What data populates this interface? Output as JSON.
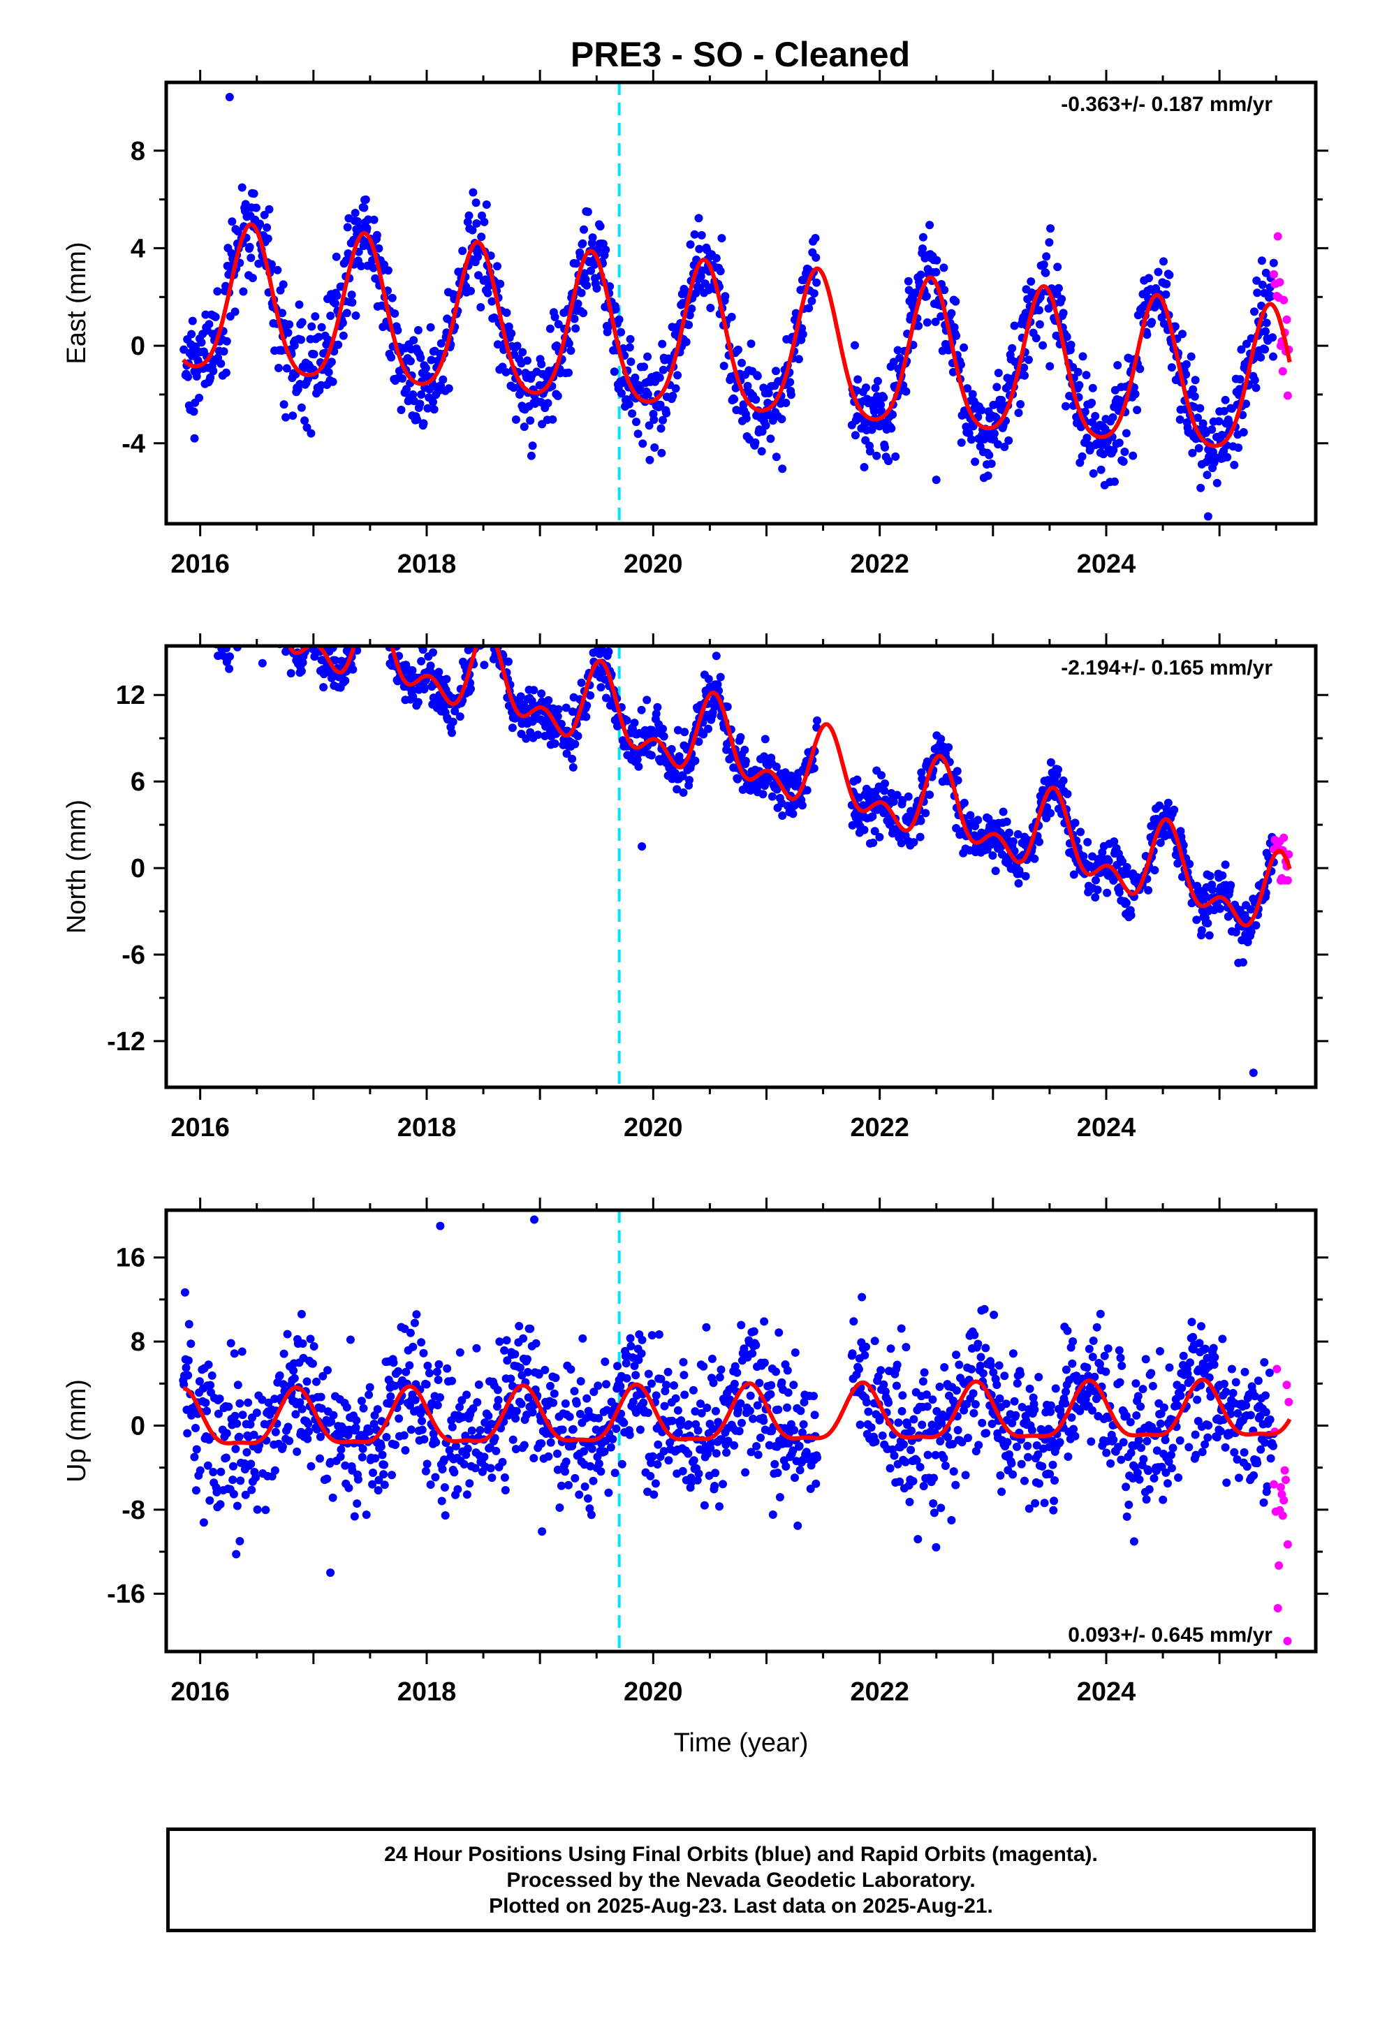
{
  "title": "PRE3  - SO - Cleaned",
  "colors": {
    "final_orbits": "#0000ff",
    "rapid_orbits": "#ff00ff",
    "model_fit": "#ff0000",
    "event_line": "#00e5ff",
    "frame": "#000000"
  },
  "chart_data": [
    {
      "type": "scatter",
      "panel": "east",
      "ylabel": "East (mm)",
      "xlabel": "",
      "xlim": [
        2015.7,
        2025.85
      ],
      "ylim": [
        -7.3,
        10.8
      ],
      "xticks": [
        2016,
        2018,
        2020,
        2022,
        2024
      ],
      "xtick_labels": [
        "2016",
        "2018",
        "2020",
        "2022",
        "2024"
      ],
      "yticks": [
        8,
        4,
        0,
        -4
      ],
      "ytick_labels": [
        "8",
        "4",
        "0",
        "-4"
      ],
      "rate_label": "-0.363+/- 0.187 mm/yr",
      "rate_position": "top-right",
      "event_line_x": 2019.7,
      "series": [
        {
          "role": "Final Orbits (blue)",
          "style": "points",
          "model": {
            "start": 2015.85,
            "end": 2025.48,
            "offset": 0.3,
            "rate": -0.363,
            "annual_amp": 3.0,
            "annual_peak": 0.45,
            "semi_amp": 0.5,
            "semi_peak": 0.45,
            "noise": 1.0,
            "gaps": [
              [
                2021.45,
                2021.75
              ]
            ],
            "outliers": [
              [
                2016.26,
                10.2
              ],
              [
                2015.95,
                -3.8
              ],
              [
                2022.5,
                -5.5
              ],
              [
                2024.9,
                -7.0
              ]
            ]
          }
        },
        {
          "role": "Rapid Orbits (magenta)",
          "style": "points",
          "model": {
            "start": 2025.48,
            "end": 2025.62,
            "offset": 0.3,
            "rate": -0.363,
            "annual_amp": 3.0,
            "annual_peak": 0.45,
            "semi_amp": 0.5,
            "semi_peak": 0.45,
            "noise": 1.2,
            "gaps": [],
            "outliers": []
          }
        },
        {
          "role": "model fit",
          "style": "line",
          "model": {
            "start": 2015.85,
            "end": 2025.62,
            "offset": 0.3,
            "rate": -0.363,
            "annual_amp": 3.0,
            "annual_peak": 0.45,
            "semi_amp": 0.5,
            "semi_peak": 0.45,
            "noise": 0,
            "gaps": [],
            "outliers": []
          }
        }
      ]
    },
    {
      "type": "scatter",
      "panel": "north",
      "ylabel": "North (mm)",
      "xlabel": "",
      "xlim": [
        2015.7,
        2025.85
      ],
      "ylim": [
        -15.2,
        15.4
      ],
      "xticks": [
        2016,
        2018,
        2020,
        2022,
        2024
      ],
      "xtick_labels": [
        "2016",
        "2018",
        "2020",
        "2022",
        "2024"
      ],
      "yticks": [
        12,
        6,
        0,
        -6,
        -12
      ],
      "ytick_labels": [
        "12",
        "6",
        "0",
        "-6",
        "-12"
      ],
      "rate_label": "-2.194+/- 0.165 mm/yr",
      "rate_position": "top-right",
      "event_line_x": 2019.7,
      "series": [
        {
          "role": "Final Orbits (blue)",
          "style": "points",
          "model": {
            "start": 2015.85,
            "end": 2025.48,
            "offset": 10.3,
            "rate": -2.194,
            "annual_amp": 2.2,
            "annual_peak": 0.55,
            "semi_amp": 1.5,
            "semi_peak": 0.53,
            "noise": 0.9,
            "gaps": [
              [
                2021.45,
                2021.75
              ]
            ],
            "outliers": [
              [
                2016.55,
                14.2
              ],
              [
                2019.9,
                1.5
              ],
              [
                2025.3,
                -14.2
              ]
            ]
          }
        },
        {
          "role": "Rapid Orbits (magenta)",
          "style": "points",
          "model": {
            "start": 2025.48,
            "end": 2025.62,
            "offset": 10.3,
            "rate": -2.194,
            "annual_amp": 2.2,
            "annual_peak": 0.55,
            "semi_amp": 1.5,
            "semi_peak": 0.53,
            "noise": 1.0,
            "gaps": [],
            "outliers": []
          }
        },
        {
          "role": "model fit",
          "style": "line",
          "model": {
            "start": 2015.85,
            "end": 2025.62,
            "offset": 10.3,
            "rate": -2.194,
            "annual_amp": 2.2,
            "annual_peak": 0.55,
            "semi_amp": 1.5,
            "semi_peak": 0.53,
            "noise": 0,
            "gaps": [],
            "outliers": []
          }
        }
      ]
    },
    {
      "type": "scatter",
      "panel": "up",
      "ylabel": "Up (mm)",
      "xlabel": "Time (year)",
      "xlim": [
        2015.7,
        2025.85
      ],
      "ylim": [
        -21.5,
        20.5
      ],
      "xticks": [
        2016,
        2018,
        2020,
        2022,
        2024
      ],
      "xtick_labels": [
        "2016",
        "2018",
        "2020",
        "2022",
        "2024"
      ],
      "yticks": [
        16,
        8,
        0,
        -8,
        -16
      ],
      "ytick_labels": [
        "16",
        "8",
        "0",
        "-8",
        "-16"
      ],
      "rate_label": "0.093+/- 0.645 mm/yr",
      "rate_position": "bottom-right",
      "event_line_x": 2019.7,
      "series": [
        {
          "role": "Final Orbits (blue)",
          "style": "points",
          "model": {
            "start": 2015.85,
            "end": 2025.48,
            "offset": 0.5,
            "rate": 0.093,
            "annual_amp": 2.6,
            "annual_peak": 0.85,
            "semi_amp": 0.8,
            "semi_peak": 0.35,
            "noise": 3.5,
            "gaps": [
              [
                2021.45,
                2021.75
              ]
            ],
            "outliers": [
              [
                2018.12,
                19.0
              ],
              [
                2018.95,
                19.6
              ],
              [
                2017.15,
                -14.0
              ],
              [
                2016.35,
                -11.0
              ]
            ]
          }
        },
        {
          "role": "Rapid Orbits (magenta)",
          "style": "points",
          "model": {
            "start": 2025.48,
            "end": 2025.62,
            "offset": -7.0,
            "rate": 0.0,
            "annual_amp": 0,
            "annual_peak": 0,
            "semi_amp": 0,
            "semi_peak": 0,
            "noise": 5.0,
            "gaps": [],
            "outliers": [
              [
                2025.6,
                -20.5
              ]
            ]
          }
        },
        {
          "role": "model fit",
          "style": "line",
          "model": {
            "start": 2015.85,
            "end": 2025.62,
            "offset": 0.5,
            "rate": 0.093,
            "annual_amp": 2.6,
            "annual_peak": 0.85,
            "semi_amp": 0.8,
            "semi_peak": 0.35,
            "noise": 0,
            "gaps": [],
            "outliers": []
          }
        }
      ]
    }
  ],
  "footer": {
    "line1": "24 Hour Positions Using Final Orbits (blue) and Rapid Orbits (magenta).",
    "line2": "Processed by the Nevada Geodetic Laboratory.",
    "line3": "Plotted on 2025-Aug-23. Last data on 2025-Aug-21."
  }
}
